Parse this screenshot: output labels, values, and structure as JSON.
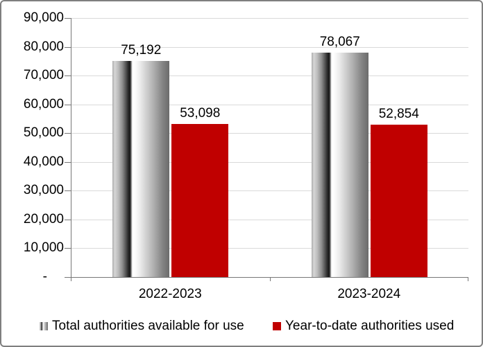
{
  "chart_data": {
    "type": "bar",
    "title": "",
    "categories": [
      "2022-2023",
      "2023-2024"
    ],
    "series": [
      {
        "name": "Total authorities available for use",
        "values": [
          75192,
          78067
        ],
        "data_labels": [
          "75,192",
          "78,067"
        ],
        "fill": "gray-gradient"
      },
      {
        "name": "Year-to-date authorities used",
        "values": [
          53098,
          52854
        ],
        "data_labels": [
          "53,098",
          "52,854"
        ],
        "fill": "#C00000"
      }
    ],
    "y_axis": {
      "min": 0,
      "max": 90000,
      "tick_interval": 10000,
      "tick_labels": [
        "-",
        "10,000",
        "20,000",
        "30,000",
        "40,000",
        "50,000",
        "60,000",
        "70,000",
        "80,000",
        "90,000"
      ]
    },
    "x_axis": {
      "tick_labels": [
        "2022-2023",
        "2023-2024"
      ]
    },
    "grid": true,
    "legend_position": "bottom"
  },
  "colors": {
    "bar_red": "#C00000",
    "gridline": "#D9D9D9",
    "axis_line": "#767676",
    "chart_border": "#7F7F7F",
    "label_text": "#000000"
  }
}
